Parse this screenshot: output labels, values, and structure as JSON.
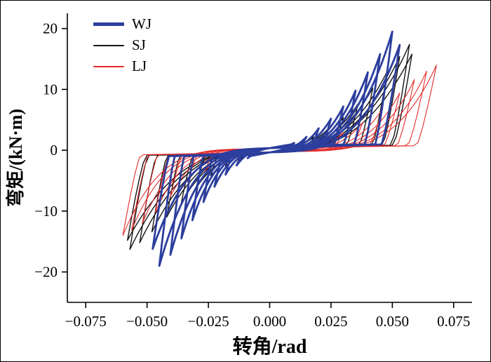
{
  "figure": {
    "background": "#ffffff",
    "border_color": "#000000"
  },
  "chart_data": {
    "type": "line",
    "subtype": "hysteresis-loops",
    "title": "",
    "xlabel": "转角/rad",
    "ylabel": "弯矩/(kN·m)",
    "xlim": [
      -0.0825,
      0.0825
    ],
    "ylim": [
      -25,
      22.5
    ],
    "grid": false,
    "legend_position": "upper-left",
    "xticks": [
      {
        "v": -0.075,
        "label": "−0.075"
      },
      {
        "v": -0.05,
        "label": "−0.050"
      },
      {
        "v": -0.025,
        "label": "−0.025"
      },
      {
        "v": 0.0,
        "label": "0.000"
      },
      {
        "v": 0.025,
        "label": "0.025"
      },
      {
        "v": 0.05,
        "label": "0.050"
      },
      {
        "v": 0.075,
        "label": "0.075"
      }
    ],
    "yticks": [
      {
        "v": 20,
        "label": "20"
      },
      {
        "v": 10,
        "label": "10"
      },
      {
        "v": 0,
        "label": "0"
      },
      {
        "v": -10,
        "label": "−10"
      },
      {
        "v": -20,
        "label": "−20"
      }
    ],
    "draw_order": [
      1,
      2,
      0
    ],
    "series": [
      {
        "name": "WJ",
        "color": "#2c3e9e",
        "lineWidth": 2.8,
        "negScale": 0.9,
        "shape": {
          "slope": 0.7,
          "gap": 0.35,
          "riseStart": 0.02,
          "risePow": 3.4,
          "unloadW": 0.14
        },
        "cycles": [
          {
            "amp": 0.01,
            "pos": 1.2,
            "neg": 1.3
          },
          {
            "amp": 0.015,
            "pos": 2.2,
            "neg": 2.5
          },
          {
            "amp": 0.02,
            "pos": 3.6,
            "neg": 4.0
          },
          {
            "amp": 0.025,
            "pos": 5.2,
            "neg": 6.0
          },
          {
            "amp": 0.03,
            "pos": 7.2,
            "neg": 8.5
          },
          {
            "amp": 0.035,
            "pos": 9.8,
            "neg": 11.5
          },
          {
            "amp": 0.04,
            "pos": 12.8,
            "neg": 14.5
          },
          {
            "amp": 0.045,
            "pos": 15.8,
            "neg": 17.2
          },
          {
            "amp": 0.05,
            "pos": 19.5,
            "neg": 19.0
          },
          {
            "amp": 0.053,
            "pos": 17.3,
            "neg": 16.2
          }
        ]
      },
      {
        "name": "SJ",
        "color": "#141414",
        "lineWidth": 1.4,
        "negScale": 1.0,
        "shape": {
          "slope": 0.6,
          "gap": 0.3,
          "riseStart": 0.0,
          "risePow": 3.0,
          "unloadW": 0.13
        },
        "cycles": [
          {
            "amp": 0.012,
            "pos": 1.2,
            "neg": 1.4
          },
          {
            "amp": 0.018,
            "pos": 2.2,
            "neg": 2.6
          },
          {
            "amp": 0.024,
            "pos": 3.6,
            "neg": 4.2
          },
          {
            "amp": 0.03,
            "pos": 5.4,
            "neg": 6.2
          },
          {
            "amp": 0.036,
            "pos": 7.6,
            "neg": 8.6
          },
          {
            "amp": 0.042,
            "pos": 10.2,
            "neg": 11.0
          },
          {
            "amp": 0.048,
            "pos": 13.0,
            "neg": 13.4
          },
          {
            "amp": 0.053,
            "pos": 15.4,
            "neg": 15.2
          },
          {
            "amp": 0.057,
            "pos": 17.4,
            "neg": 16.3
          },
          {
            "amp": 0.058,
            "pos": 15.8,
            "neg": 14.8
          }
        ]
      },
      {
        "name": "LJ",
        "color": "#e42b2b",
        "lineWidth": 1.1,
        "negScale": 0.88,
        "shape": {
          "slope": 0.5,
          "gap": 0.3,
          "riseStart": 0.12,
          "risePow": 3.8,
          "unloadW": 0.12
        },
        "cycles": [
          {
            "amp": 0.015,
            "pos": 0.9,
            "neg": 1.1
          },
          {
            "amp": 0.022,
            "pos": 1.7,
            "neg": 2.0
          },
          {
            "amp": 0.03,
            "pos": 2.9,
            "neg": 3.4
          },
          {
            "amp": 0.038,
            "pos": 4.6,
            "neg": 5.2
          },
          {
            "amp": 0.046,
            "pos": 6.8,
            "neg": 7.6
          },
          {
            "amp": 0.053,
            "pos": 9.4,
            "neg": 10.2
          },
          {
            "amp": 0.059,
            "pos": 11.6,
            "neg": 12.0
          },
          {
            "amp": 0.064,
            "pos": 13.0,
            "neg": 13.2
          },
          {
            "amp": 0.068,
            "pos": 14.0,
            "neg": 14.0
          }
        ]
      }
    ]
  }
}
